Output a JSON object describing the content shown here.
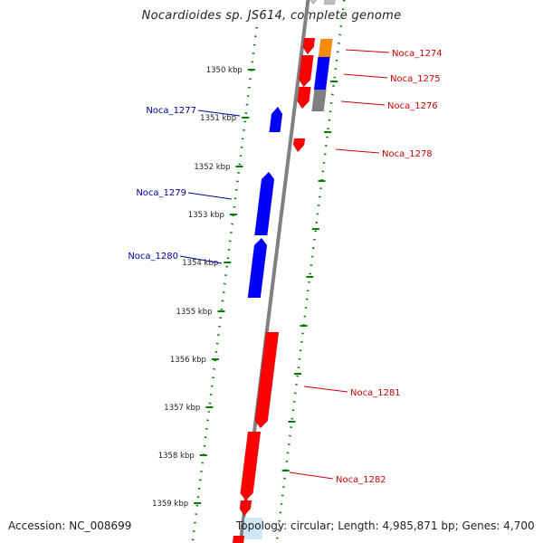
{
  "title": "Nocardioides sp. JS614, complete genome",
  "footer": {
    "accession": "Accession: NC_008699",
    "topology": "Topology: circular; Length: 4,985,871 bp; Genes: 4,700"
  },
  "colors": {
    "forward_gene": "#ff0000",
    "reverse_gene": "#0000ff",
    "forward_label": "#cc0000",
    "reverse_label": "#000099",
    "backbone": "#808080",
    "tick": "#008000",
    "orange_feature": "#ff8c00",
    "gray_feature": "#808080",
    "light_feature": "#cde8f8"
  },
  "scale_labels": [
    "1350 kbp",
    "1351 kbp",
    "1352 kbp",
    "1353 kbp",
    "1354 kbp",
    "1355 kbp",
    "1356 kbp",
    "1357 kbp",
    "1358 kbp",
    "1359 kbp"
  ],
  "gene_labels_reverse": [
    "Noca_1277",
    "Noca_1279",
    "Noca_1280"
  ],
  "gene_labels_forward": [
    "Noca_1274",
    "Noca_1275",
    "Noca_1276",
    "Noca_1278",
    "Noca_1281",
    "Noca_1282"
  ]
}
